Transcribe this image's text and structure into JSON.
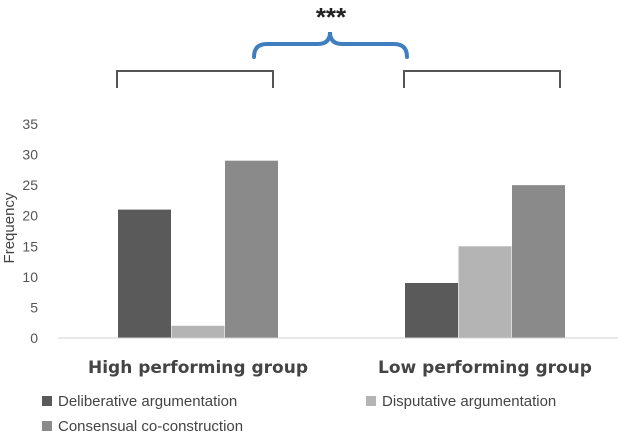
{
  "chart_data": {
    "type": "bar",
    "categories": [
      "High performing group",
      "Low performing group"
    ],
    "series": [
      {
        "name": "Deliberative argumentation",
        "values": [
          21,
          9
        ],
        "color": "#5a5a5a"
      },
      {
        "name": "Disputative argumentation",
        "values": [
          2,
          15
        ],
        "color": "#b4b4b4"
      },
      {
        "name": "Consensual co-construction",
        "values": [
          29,
          25
        ],
        "color": "#8a8a8a"
      }
    ],
    "ylabel": "Frequency",
    "ylim": [
      0,
      35
    ],
    "yticks": [
      0,
      5,
      10,
      15,
      20,
      25,
      30,
      35
    ],
    "grid": false,
    "legend": "bottom",
    "annotation": {
      "text": "***",
      "brace_color": "#3f7fbf",
      "bracket_color": "#555555"
    }
  }
}
